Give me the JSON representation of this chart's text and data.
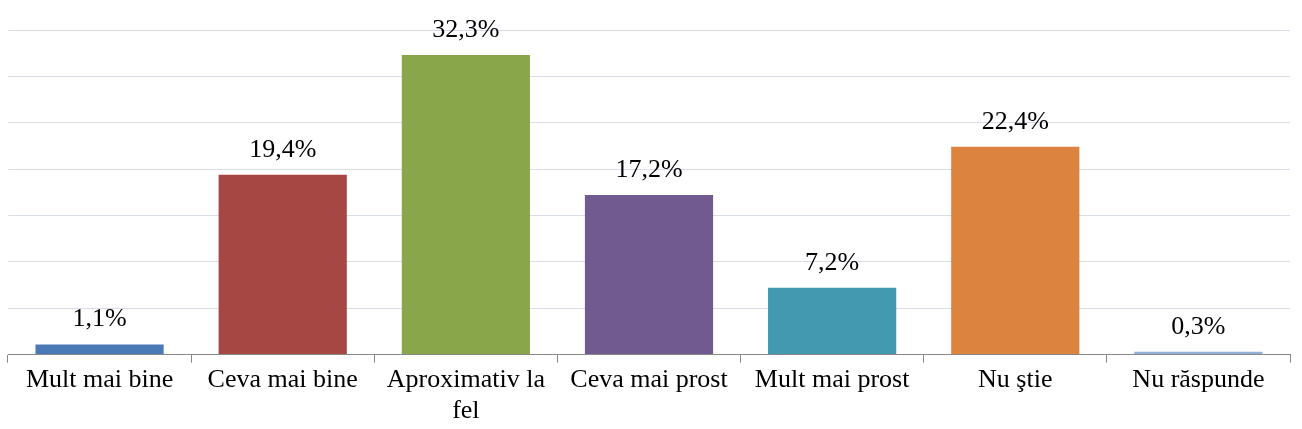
{
  "chart_data": {
    "type": "bar",
    "categories": [
      "Mult mai bine",
      "Ceva mai bine",
      "Aproximativ la fel",
      "Ceva mai prost",
      "Mult mai prost",
      "Nu ştie",
      "Nu răspunde"
    ],
    "values": [
      1.1,
      19.4,
      32.3,
      17.2,
      7.2,
      22.4,
      0.3
    ],
    "value_labels": [
      "1,1%",
      "19,4%",
      "32,3%",
      "17,2%",
      "7,2%",
      "22,4%",
      "0,3%"
    ],
    "colors": [
      "#4a7ab5",
      "#a64744",
      "#8aa64b",
      "#715a8f",
      "#4399af",
      "#dc8340",
      "#94aed6"
    ],
    "ylim": [
      0,
      35
    ],
    "yticks": [
      {
        "value": 0,
        "label": null
      },
      {
        "value": 5,
        "label": null
      },
      {
        "value": 10,
        "label": null
      },
      {
        "value": 15,
        "label": null
      },
      {
        "value": 20,
        "label": null
      },
      {
        "value": 25,
        "label": null
      },
      {
        "value": 30,
        "label": null
      },
      {
        "value": 35,
        "label": null
      }
    ],
    "grid": "y",
    "legend": false,
    "tick_labels": "x"
  }
}
